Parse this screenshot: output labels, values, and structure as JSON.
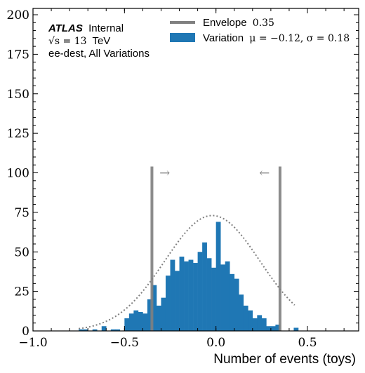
{
  "chart_data": {
    "type": "bar",
    "xlabel": "Number of events (toys)",
    "ylabel": "",
    "xlim": [
      -1.0,
      0.78
    ],
    "ylim": [
      0,
      204
    ],
    "x_ticks": [
      -1.0,
      -0.5,
      0.0,
      0.5
    ],
    "x_tick_labels": [
      "−1.0",
      "−0.5",
      "0.0",
      "0.5"
    ],
    "y_ticks": [
      0,
      25,
      50,
      75,
      100,
      125,
      150,
      175,
      200
    ],
    "y_tick_labels": [
      "0",
      "25",
      "50",
      "75",
      "100",
      "125",
      "150",
      "175",
      "200"
    ],
    "bin_width": 0.025,
    "bins_left": [
      -0.75,
      -0.725,
      -0.7,
      -0.675,
      -0.65,
      -0.625,
      -0.6,
      -0.575,
      -0.55,
      -0.525,
      -0.5,
      -0.475,
      -0.45,
      -0.425,
      -0.4,
      -0.375,
      -0.35,
      -0.325,
      -0.3,
      -0.275,
      -0.25,
      -0.225,
      -0.2,
      -0.175,
      -0.15,
      -0.125,
      -0.1,
      -0.075,
      -0.05,
      -0.025,
      0.0,
      0.025,
      0.05,
      0.075,
      0.1,
      0.125,
      0.15,
      0.175,
      0.2,
      0.225,
      0.25,
      0.275,
      0.3,
      0.325,
      0.35,
      0.375,
      0.4,
      0.425,
      0.45
    ],
    "series": [
      {
        "name": "Variation",
        "color": "#1f77b4",
        "values": [
          1,
          1,
          0,
          1,
          0,
          3,
          0,
          1,
          1,
          0,
          8,
          11,
          13,
          12,
          11,
          20,
          29,
          16,
          21,
          35,
          45,
          38,
          47,
          44,
          45,
          43,
          50,
          56,
          46,
          40,
          69,
          42,
          44,
          36,
          33,
          23,
          16,
          13,
          8,
          10,
          8,
          3,
          3,
          4,
          0,
          0,
          0,
          2,
          0
        ]
      }
    ],
    "envelope": {
      "name": "Envelope",
      "value_label": "0.35",
      "x": [
        -0.35,
        0.35
      ],
      "y_top": 104,
      "color": "#808080"
    },
    "gaussian": {
      "mu": -0.02,
      "sigma": 0.26,
      "amplitude": 73,
      "x_range": [
        -0.75,
        0.43
      ],
      "color": "#808080"
    },
    "arrows": [
      {
        "symbol": "→",
        "x": -0.28,
        "y": 100
      },
      {
        "symbol": "←",
        "x": 0.265,
        "y": 100
      }
    ],
    "legend": {
      "placement": "top-right",
      "envelope_label": "Envelope",
      "envelope_math": "0.35",
      "variation_label": "Variation",
      "variation_math": "μ = −0.12, σ = 0.18"
    },
    "annotations": {
      "atlas": "ATLAS",
      "internal": "Internal",
      "energy_prefix": "√s = 13",
      "energy_unit": "TeV",
      "selection": "ee-dest, All Variations"
    }
  }
}
